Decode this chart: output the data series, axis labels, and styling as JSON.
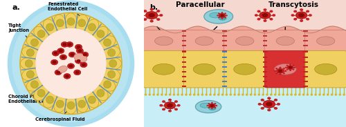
{
  "fig_width": 5.0,
  "fig_height": 1.84,
  "dpi": 100,
  "panel_a": {
    "label": "a.",
    "bg_color": "#c8eef8",
    "halo_colors": [
      "#b0e4f4",
      "#98d8f0",
      "#80ccec"
    ],
    "ring_color": "#f0d060",
    "ring_ec": "#c8a830",
    "inner_circle_color": "#f0c8c0",
    "inner_circle_ec": "#d09090",
    "lumen_color": "#fde8e0",
    "lumen_ec": "#d09090",
    "cell_color": "#f0d060",
    "cell_ec": "#c0a020",
    "nucleus_color": "#c8b030",
    "tj_color": "#5090d0",
    "rbc_color": "#c82020",
    "rbc_dark": "#8a0808"
  },
  "panel_b": {
    "label": "b.",
    "blood_bg": "#f5d8d0",
    "csf_bg": "#c8eef8",
    "middle_bg": "#c8eef8",
    "ep_cell_color": "#f0d060",
    "ep_cell_ec": "#c0a020",
    "ep_infected_color": "#d83030",
    "ep_infected_ec": "#a02020",
    "ep_nuc_color": "#c8b030",
    "ep_nuc_infected": "#e08080",
    "en_cell_color": "#f0a898",
    "en_cell_ec": "#c07868",
    "en_nuc_color": "#e09888",
    "tj_blue": "#4080c8",
    "tj_red": "#c82020",
    "tj_yellow": "#d8b820",
    "microvillus_color": "#d8b820",
    "title_paracellular": "Paracellular",
    "title_transcytosis": "Transcytosis",
    "title_fontsize": 7.5,
    "virus_color": "#c82020",
    "virus_dark": "#8a0808",
    "leuko_bg": "#90d0d8",
    "leuko_ec": "#60a0b0"
  }
}
